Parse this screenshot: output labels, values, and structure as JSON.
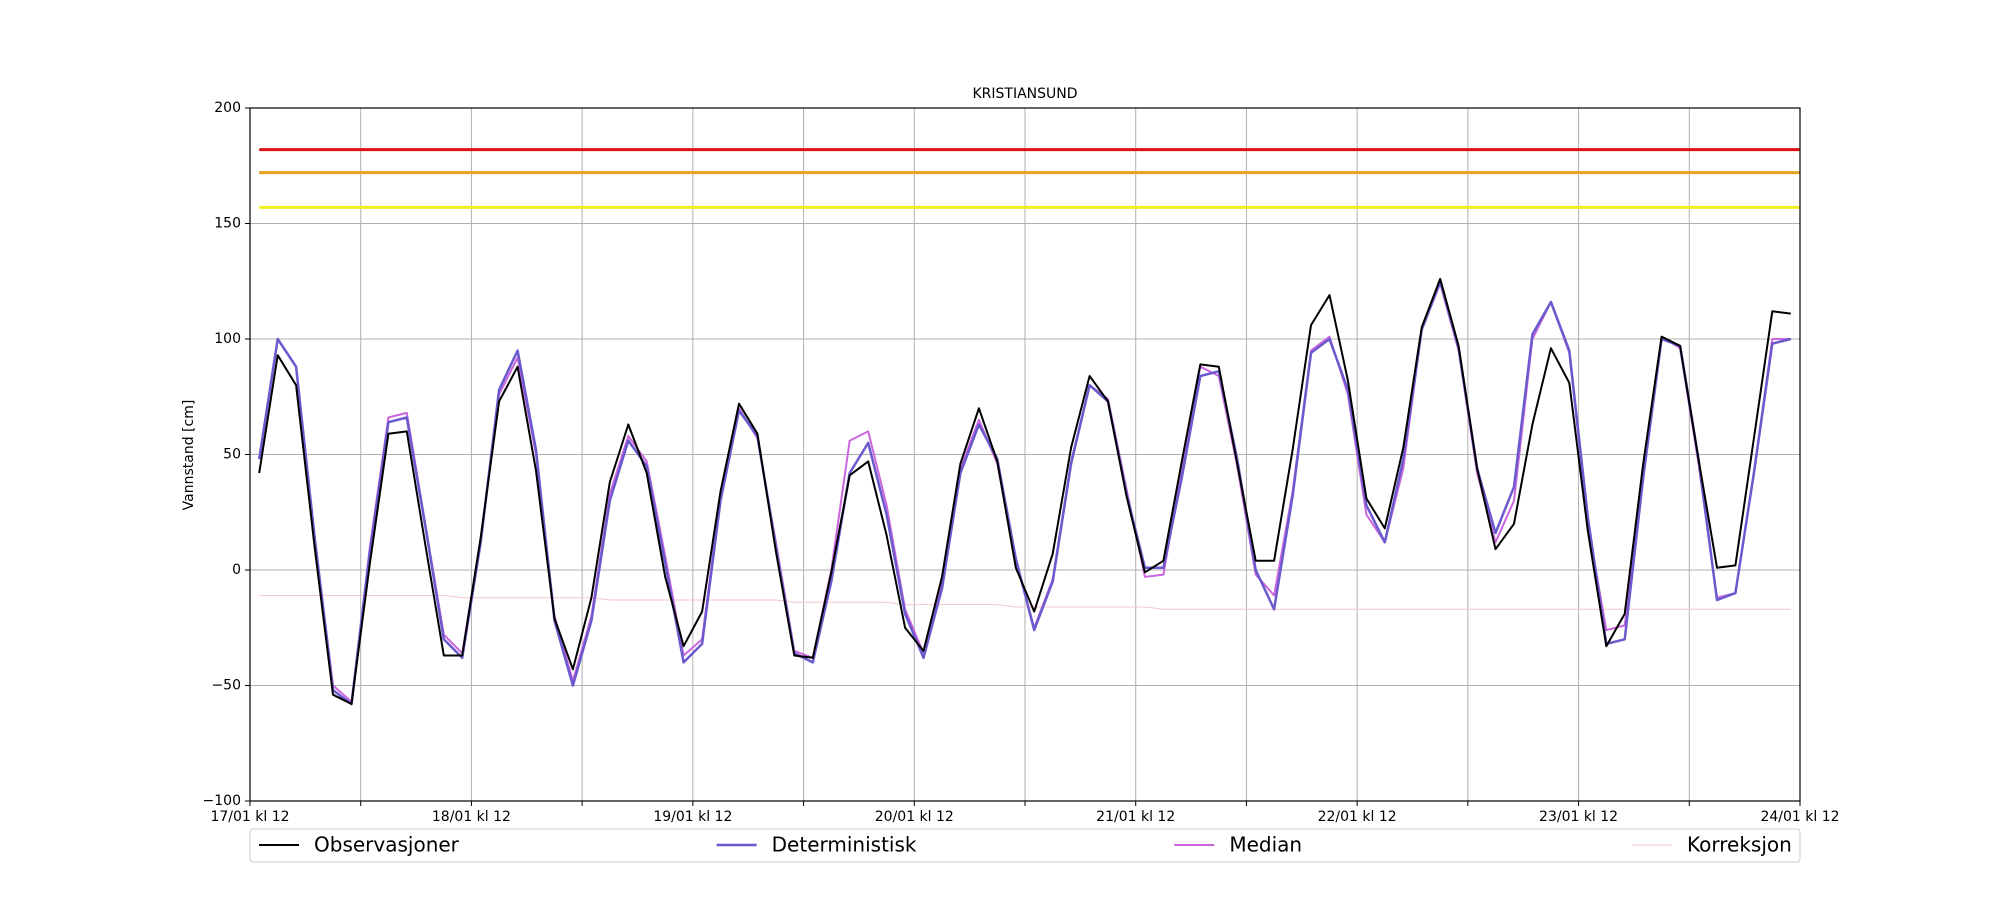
{
  "chart_data": {
    "type": "line",
    "title": "KRISTIANSUND",
    "y_label": "Vannstand [cm]",
    "x": [
      1,
      3,
      5,
      7,
      9,
      11,
      13,
      15,
      17,
      19,
      21,
      23,
      25,
      27,
      29,
      31,
      33,
      35,
      37,
      39,
      41,
      43,
      45,
      47,
      49,
      51,
      53,
      55,
      57,
      59,
      61,
      63,
      65,
      67,
      69,
      71,
      73,
      75,
      77,
      79,
      81,
      83,
      85,
      87,
      89,
      91,
      93,
      95,
      97,
      99,
      101,
      103,
      105,
      107,
      109,
      111,
      113,
      115,
      117,
      119,
      121,
      123,
      125,
      127,
      129,
      131,
      133,
      135,
      137,
      139,
      141,
      143,
      145,
      147,
      149,
      151,
      153,
      155,
      157,
      159,
      161,
      163,
      165,
      167
    ],
    "xlim": [
      0,
      168
    ],
    "xticks": [
      {
        "value": 0,
        "label": "17/01 kl 12"
      },
      {
        "value": 24,
        "label": "18/01 kl 12"
      },
      {
        "value": 48,
        "label": "19/01 kl 12"
      },
      {
        "value": 72,
        "label": "20/01 kl 12"
      },
      {
        "value": 96,
        "label": "21/01 kl 12"
      },
      {
        "value": 120,
        "label": "22/01 kl 12"
      },
      {
        "value": 144,
        "label": "23/01 kl 12"
      },
      {
        "value": 168,
        "label": "24/01 kl 12"
      }
    ],
    "xticks_minor": [
      12,
      36,
      60,
      84,
      108,
      132,
      156
    ],
    "ylim": [
      -100,
      200
    ],
    "yticks": [
      {
        "value": -100,
        "label": "−100"
      },
      {
        "value": -50,
        "label": "−50"
      },
      0,
      50,
      100,
      150,
      200
    ],
    "grid": true,
    "legend": "bottom",
    "series": [
      {
        "name": "Observasjoner",
        "color": "#000000",
        "width": 2,
        "values": [
          42,
          93,
          80,
          10,
          -54,
          -58,
          3,
          59,
          60,
          11,
          -37,
          -37,
          14,
          73,
          88,
          43,
          -21,
          -43,
          -12,
          38,
          63,
          42,
          -3,
          -33,
          -18,
          34,
          72,
          59,
          8,
          -37,
          -38,
          -1,
          41,
          47,
          15,
          -25,
          -35,
          -3,
          46,
          70,
          47,
          1,
          -18,
          7,
          53,
          84,
          73,
          32,
          -1,
          4,
          47,
          89,
          88,
          46,
          4,
          4,
          52,
          106,
          119,
          82,
          31,
          18,
          53,
          105,
          126,
          97,
          44,
          9,
          20,
          63,
          96,
          81,
          17,
          -33,
          -19,
          46,
          101,
          97,
          48,
          1,
          2,
          57,
          112,
          111
        ]
      },
      {
        "name": "Deterministisk",
        "color": "#6a5acd",
        "width": 2.5,
        "values": [
          48,
          100,
          88,
          14,
          -52,
          -58,
          8,
          64,
          66,
          19,
          -30,
          -38,
          12,
          78,
          95,
          52,
          -22,
          -50,
          -22,
          30,
          56,
          45,
          3,
          -40,
          -32,
          30,
          69,
          58,
          10,
          -36,
          -40,
          -5,
          42,
          55,
          24,
          -19,
          -38,
          -8,
          42,
          63,
          48,
          5,
          -26,
          -5,
          46,
          80,
          73,
          33,
          1,
          1,
          40,
          84,
          86,
          48,
          0,
          -17,
          32,
          94,
          100,
          78,
          28,
          12,
          48,
          104,
          125,
          96,
          44,
          16,
          36,
          102,
          116,
          95,
          23,
          -32,
          -30,
          40,
          100,
          97,
          48,
          -13,
          -10,
          42,
          98,
          100
        ]
      },
      {
        "name": "Median",
        "color": "#cc66dd",
        "width": 2,
        "values": [
          48,
          100,
          88,
          15,
          -50,
          -57,
          10,
          66,
          68,
          20,
          -28,
          -36,
          14,
          76,
          92,
          50,
          -20,
          -48,
          -20,
          33,
          58,
          47,
          6,
          -37,
          -30,
          32,
          70,
          57,
          12,
          -35,
          -38,
          0,
          56,
          60,
          28,
          -17,
          -36,
          -6,
          44,
          65,
          46,
          4,
          -25,
          -4,
          47,
          80,
          74,
          35,
          -3,
          -2,
          44,
          88,
          84,
          45,
          -2,
          -11,
          34,
          95,
          101,
          76,
          24,
          12,
          44,
          104,
          124,
          95,
          42,
          12,
          30,
          100,
          116,
          94,
          20,
          -26,
          -24,
          40,
          101,
          96,
          46,
          -12,
          -10,
          42,
          100,
          100
        ]
      },
      {
        "name": "Korreksjon",
        "color": "#f4c6cc",
        "width": 1,
        "values": [
          -11,
          -11,
          -11,
          -11,
          -11,
          -11,
          -11,
          -11,
          -11,
          -11,
          -11,
          -12,
          -12,
          -12,
          -12,
          -12,
          -12,
          -12,
          -12,
          -13,
          -13,
          -13,
          -13,
          -13,
          -13,
          -13,
          -13,
          -13,
          -13,
          -14,
          -14,
          -14,
          -14,
          -14,
          -14,
          -15,
          -15,
          -15,
          -15,
          -15,
          -15,
          -16,
          -16,
          -16,
          -16,
          -16,
          -16,
          -16,
          -16,
          -17,
          -17,
          -17,
          -17,
          -17,
          -17,
          -17,
          -17,
          -17,
          -17,
          -17,
          -17,
          -17,
          -17,
          -17,
          -17,
          -17,
          -17,
          -17,
          -17,
          -17,
          -17,
          -17,
          -17,
          -17,
          -17,
          -17,
          -17,
          -17,
          -17,
          -17,
          -17,
          -17,
          -17,
          -17
        ]
      }
    ],
    "thresholds": [
      {
        "value": 182,
        "color": "#dd1111"
      },
      {
        "value": 172,
        "color": "#e8a020"
      },
      {
        "value": 157,
        "color": "#f0f020"
      }
    ],
    "threshold_start": 1
  }
}
